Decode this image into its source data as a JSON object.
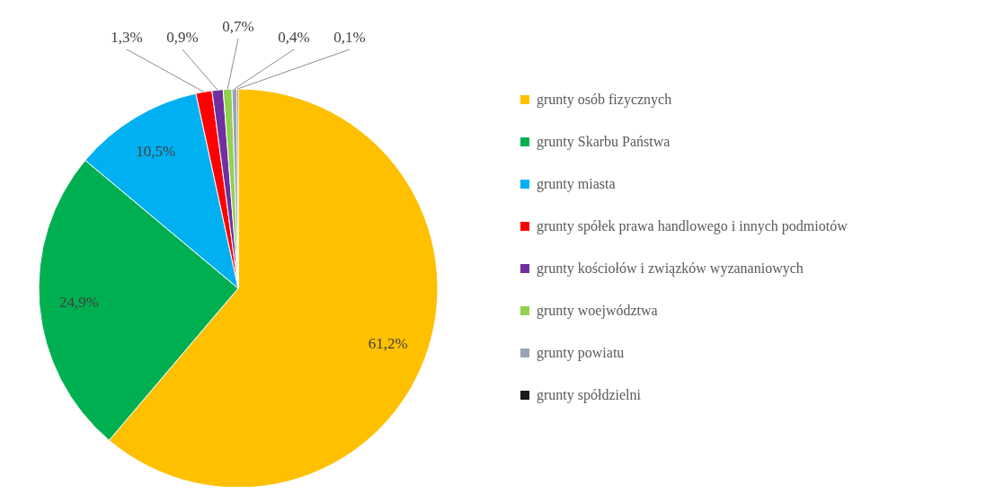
{
  "chart_data": {
    "type": "pie",
    "categories": [
      "grunty osób fizycznych",
      "grunty Skarbu Państwa",
      "grunty miasta",
      "grunty spółek prawa handlowego i innych podmiotów",
      "grunty kościołów i związków wyzananiowych",
      "grunty woejwództwa",
      "grunty powiatu",
      "grunty spółdzielni"
    ],
    "values": [
      61.2,
      24.9,
      10.5,
      1.3,
      0.9,
      0.7,
      0.4,
      0.1
    ],
    "value_labels": [
      "61,2%",
      "24,9%",
      "10,5%",
      "1,3%",
      "0,9%",
      "0,7%",
      "0,4%",
      "0,1%"
    ],
    "colors": [
      "#ffc000",
      "#00b050",
      "#00b0f0",
      "#ff0000",
      "#7030a0",
      "#92d050",
      "#9aa3b5",
      "#1a1a1a"
    ],
    "legend": "right"
  }
}
